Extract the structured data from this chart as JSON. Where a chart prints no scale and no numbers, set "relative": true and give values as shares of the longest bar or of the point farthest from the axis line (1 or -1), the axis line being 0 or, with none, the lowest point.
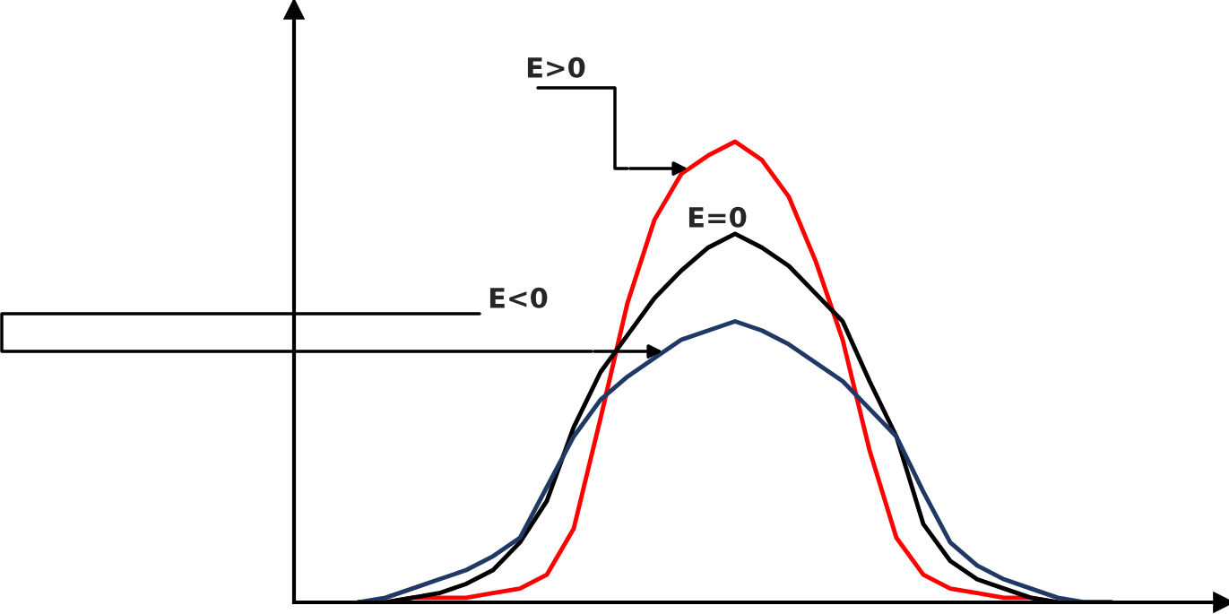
{
  "chart_data": {
    "type": "line",
    "relative": true,
    "categories": [
      null,
      null,
      null,
      null,
      null,
      null,
      null,
      null,
      null,
      null,
      null,
      null,
      null,
      null,
      null,
      null,
      null,
      null,
      null,
      null,
      null,
      null,
      null,
      null,
      null,
      null,
      null,
      null,
      null
    ],
    "series": [
      {
        "color": "#ff0000",
        "values": [
          0,
          0,
          0.01,
          0.01,
          0.01,
          0.02,
          0.03,
          0.06,
          0.16,
          0.4,
          0.65,
          0.83,
          0.93,
          0.97,
          1,
          0.96,
          0.88,
          0.74,
          0.57,
          0.33,
          0.14,
          0.06,
          0.03,
          0.02,
          0.01,
          0.01,
          0,
          null,
          null
        ]
      },
      {
        "color": "#000000",
        "values": [
          0,
          0,
          0.01,
          0.02,
          0.04,
          0.07,
          0.13,
          0.22,
          0.38,
          0.5,
          0.58,
          0.66,
          0.72,
          0.77,
          0.8,
          0.77,
          0.73,
          0.67,
          0.61,
          0.48,
          0.36,
          0.17,
          0.09,
          0.05,
          0.03,
          0.01,
          0,
          0,
          0
        ]
      },
      {
        "color": "#203864",
        "values": [
          0,
          0.01,
          0.03,
          0.05,
          0.07,
          0.1,
          0.14,
          0.25,
          0.36,
          0.44,
          0.49,
          0.53,
          0.57,
          0.59,
          0.61,
          0.59,
          0.56,
          0.52,
          0.48,
          0.42,
          0.36,
          0.24,
          0.13,
          0.08,
          0.05,
          0.03,
          0.01,
          0,
          0
        ]
      }
    ],
    "annotations": [
      "E>0",
      "E=0",
      "E<0"
    ],
    "grid": false,
    "marker": "none",
    "line_style": "solid"
  }
}
